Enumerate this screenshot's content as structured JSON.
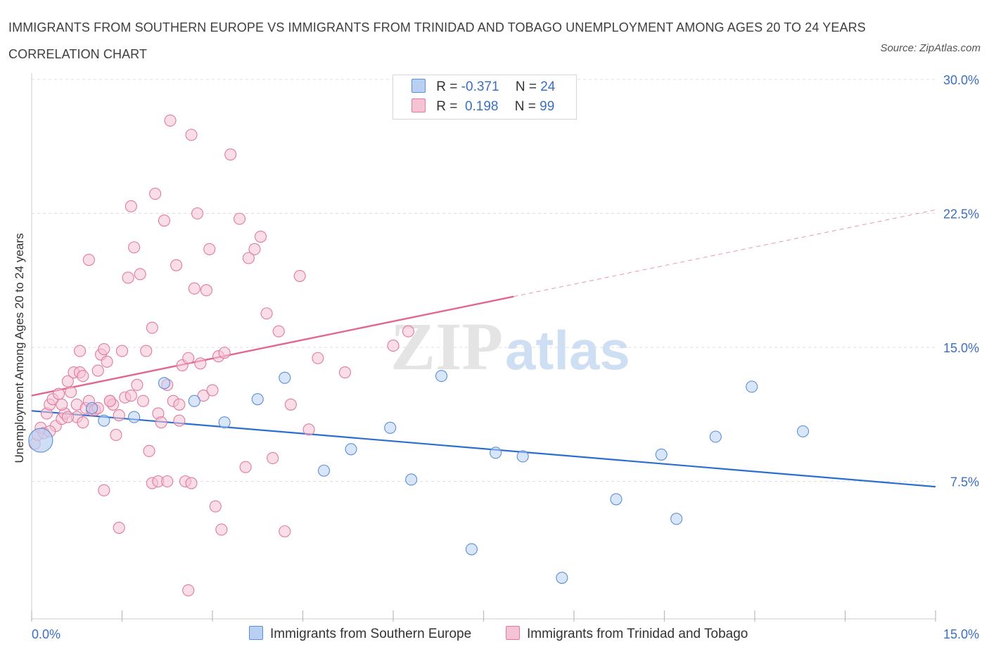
{
  "title": "IMMIGRANTS FROM SOUTHERN EUROPE VS IMMIGRANTS FROM TRINIDAD AND TOBAGO UNEMPLOYMENT AMONG AGES 20 TO 24 YEARS CORRELATION CHART",
  "source": "Source: ZipAtlas.com",
  "watermark": {
    "zip": "ZIP",
    "atlas": "atlas"
  },
  "colors": {
    "blue": "#5b8fd6",
    "blue_fill": "#b9d0f3",
    "pink": "#e07aa0",
    "pink_fill": "#f6c3d4",
    "line_blue": "#2a6fcf",
    "line_pink": "#e06890",
    "tick": "#3a6fc4"
  },
  "legend": {
    "rows": [
      {
        "r_label": "R =",
        "r_value": "-0.371",
        "n_label": "N =",
        "n_value": "24"
      },
      {
        "r_label": "R =",
        "r_value": " 0.198",
        "n_label": "N =",
        "n_value": "99"
      }
    ]
  },
  "bottom_legend": [
    "Immigrants from Southern Europe",
    "Immigrants from Trinidad and Tobago"
  ],
  "chart_data": {
    "type": "scatter",
    "xlabel": "",
    "ylabel": "Unemployment Among Ages 20 to 24 years",
    "xlim": [
      0,
      15
    ],
    "ylim": [
      0,
      30
    ],
    "x_tick_labels": [
      "0.0%",
      "15.0%"
    ],
    "y_ticks": [
      7.5,
      15.0,
      22.5,
      30.0
    ],
    "y_tick_labels": [
      "7.5%",
      "15.0%",
      "22.5%",
      "30.0%"
    ],
    "grid": true,
    "legend_position": "top-center",
    "series": [
      {
        "name": "Immigrants from Southern Europe",
        "color": "#5b8fd6",
        "points": [
          [
            0.15,
            9.8
          ],
          [
            1.2,
            10.9
          ],
          [
            1.7,
            11.1
          ],
          [
            2.2,
            13.0
          ],
          [
            2.7,
            12.0
          ],
          [
            3.2,
            10.8
          ],
          [
            3.75,
            12.1
          ],
          [
            4.2,
            13.3
          ],
          [
            4.85,
            8.1
          ],
          [
            5.3,
            9.3
          ],
          [
            5.95,
            10.5
          ],
          [
            6.3,
            7.6
          ],
          [
            6.8,
            13.4
          ],
          [
            7.3,
            3.7
          ],
          [
            7.7,
            9.1
          ],
          [
            8.15,
            8.9
          ],
          [
            8.8,
            2.1
          ],
          [
            9.7,
            6.5
          ],
          [
            10.45,
            9.0
          ],
          [
            10.7,
            5.4
          ],
          [
            11.35,
            10.0
          ],
          [
            11.95,
            12.8
          ],
          [
            12.8,
            10.3
          ],
          [
            1.0,
            11.6
          ]
        ],
        "trend": {
          "x": [
            0,
            15
          ],
          "y": [
            11.45,
            7.2
          ]
        }
      },
      {
        "name": "Immigrants from Trinidad and Tobago",
        "color": "#e07aa0",
        "points": [
          [
            0.05,
            9.6
          ],
          [
            0.1,
            10.1
          ],
          [
            0.15,
            10.5
          ],
          [
            0.2,
            10.2
          ],
          [
            0.25,
            11.3
          ],
          [
            0.3,
            11.8
          ],
          [
            0.35,
            12.1
          ],
          [
            0.4,
            10.6
          ],
          [
            0.45,
            12.4
          ],
          [
            0.5,
            11.0
          ],
          [
            0.55,
            11.3
          ],
          [
            0.6,
            13.1
          ],
          [
            0.65,
            12.5
          ],
          [
            0.7,
            13.6
          ],
          [
            0.75,
            11.8
          ],
          [
            0.8,
            13.6
          ],
          [
            0.85,
            13.4
          ],
          [
            0.9,
            11.6
          ],
          [
            0.95,
            12.0
          ],
          [
            1.0,
            11.5
          ],
          [
            0.75,
            11.1
          ],
          [
            0.85,
            10.8
          ],
          [
            0.95,
            19.9
          ],
          [
            0.8,
            14.8
          ],
          [
            1.05,
            11.5
          ],
          [
            1.1,
            13.7
          ],
          [
            1.15,
            14.6
          ],
          [
            1.2,
            14.9
          ],
          [
            1.25,
            14.2
          ],
          [
            1.3,
            12.0
          ],
          [
            1.35,
            11.8
          ],
          [
            1.4,
            10.1
          ],
          [
            1.45,
            11.2
          ],
          [
            1.5,
            14.8
          ],
          [
            1.55,
            12.2
          ],
          [
            1.6,
            18.9
          ],
          [
            1.65,
            12.3
          ],
          [
            1.7,
            20.6
          ],
          [
            1.75,
            12.9
          ],
          [
            1.8,
            19.1
          ],
          [
            1.85,
            12.0
          ],
          [
            1.9,
            14.8
          ],
          [
            1.95,
            9.2
          ],
          [
            2.0,
            16.1
          ],
          [
            2.05,
            23.6
          ],
          [
            2.1,
            11.3
          ],
          [
            2.15,
            10.8
          ],
          [
            2.2,
            22.1
          ],
          [
            2.25,
            12.9
          ],
          [
            2.3,
            27.7
          ],
          [
            2.35,
            12.0
          ],
          [
            2.4,
            19.6
          ],
          [
            2.45,
            11.8
          ],
          [
            2.5,
            14.0
          ],
          [
            2.55,
            7.5
          ],
          [
            2.6,
            14.4
          ],
          [
            2.65,
            26.9
          ],
          [
            2.7,
            18.3
          ],
          [
            2.75,
            22.5
          ],
          [
            2.8,
            14.1
          ],
          [
            2.85,
            12.3
          ],
          [
            2.9,
            18.2
          ],
          [
            2.95,
            20.5
          ],
          [
            3.0,
            12.6
          ],
          [
            3.05,
            6.1
          ],
          [
            3.1,
            14.5
          ],
          [
            3.15,
            4.8
          ],
          [
            3.2,
            14.7
          ],
          [
            3.3,
            25.8
          ],
          [
            3.45,
            22.2
          ],
          [
            3.55,
            8.3
          ],
          [
            3.6,
            20.0
          ],
          [
            3.7,
            20.5
          ],
          [
            3.8,
            21.2
          ],
          [
            3.9,
            16.9
          ],
          [
            4.0,
            8.8
          ],
          [
            4.1,
            15.9
          ],
          [
            4.2,
            4.7
          ],
          [
            4.3,
            11.8
          ],
          [
            4.45,
            19.0
          ],
          [
            4.6,
            10.4
          ],
          [
            4.75,
            14.4
          ],
          [
            5.2,
            13.6
          ],
          [
            6.0,
            15.1
          ],
          [
            6.25,
            15.9
          ],
          [
            1.2,
            7.0
          ],
          [
            1.45,
            4.9
          ],
          [
            1.65,
            22.9
          ],
          [
            2.0,
            7.4
          ],
          [
            2.1,
            7.5
          ],
          [
            2.25,
            7.5
          ],
          [
            2.45,
            10.9
          ],
          [
            2.65,
            7.4
          ],
          [
            2.6,
            1.4
          ],
          [
            1.1,
            11.6
          ],
          [
            1.3,
            12.0
          ],
          [
            0.5,
            11.8
          ],
          [
            0.3,
            10.3
          ],
          [
            0.6,
            11.1
          ]
        ],
        "trend": {
          "x": [
            0,
            15
          ],
          "y": [
            12.3,
            22.7
          ],
          "solid_until_x": 8.0
        }
      }
    ]
  }
}
